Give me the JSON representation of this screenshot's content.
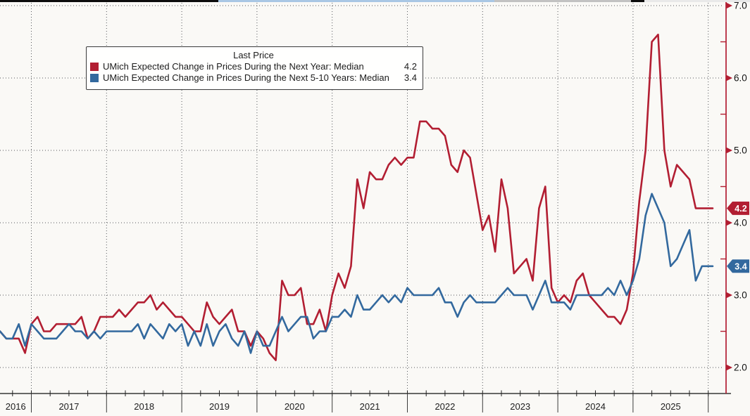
{
  "legend": {
    "title": "Last Price",
    "entries": [
      {
        "label": "UMich Expected Change in Prices During the Next Year: Median",
        "value": "4.2",
        "color": "#b21e32"
      },
      {
        "label": "UMich Expected Change in Prices During the Next 5-10 Years: Median",
        "value": "3.4",
        "color": "#33699e"
      }
    ]
  },
  "y_axis": {
    "tick_labels": [
      "7.0",
      "6.0",
      "5.0",
      "4.0",
      "3.0",
      "2.0"
    ],
    "axis_color": "#b21e32",
    "label_color": "#131313"
  },
  "x_axis": {
    "year_labels": [
      "2016",
      "2017",
      "2018",
      "2019",
      "2020",
      "2021",
      "2022",
      "2023",
      "2024",
      "2025"
    ]
  },
  "badges": [
    {
      "value": "4.2",
      "color": "#b21e32"
    },
    {
      "value": "3.4",
      "color": "#33699e"
    }
  ],
  "chart_data": {
    "type": "line",
    "title": "Last Price",
    "x_unit": "month",
    "x_start": "2016-08",
    "x_end": "2025-11",
    "ylim": [
      1.7,
      7.05
    ],
    "y_ticks": [
      2.0,
      3.0,
      4.0,
      5.0,
      6.0,
      7.0
    ],
    "grid": "dotted",
    "legend_position": "top-left-box",
    "series": [
      {
        "name": "UMich Expected Change in Prices During the Next Year: Median",
        "color": "#b21e32",
        "last": 4.2,
        "values": [
          2.5,
          2.4,
          2.4,
          2.4,
          2.2,
          2.6,
          2.7,
          2.5,
          2.5,
          2.6,
          2.6,
          2.6,
          2.6,
          2.7,
          2.4,
          2.5,
          2.7,
          2.7,
          2.7,
          2.8,
          2.7,
          2.8,
          2.9,
          2.9,
          3.0,
          2.8,
          2.9,
          2.8,
          2.7,
          2.7,
          2.6,
          2.5,
          2.5,
          2.9,
          2.7,
          2.6,
          2.7,
          2.8,
          2.5,
          2.5,
          2.3,
          2.5,
          2.4,
          2.2,
          2.1,
          3.2,
          3.0,
          3.0,
          3.1,
          2.6,
          2.6,
          2.8,
          2.5,
          3.0,
          3.3,
          3.1,
          3.4,
          4.6,
          4.2,
          4.7,
          4.6,
          4.6,
          4.8,
          4.9,
          4.8,
          4.9,
          4.9,
          5.4,
          5.4,
          5.3,
          5.3,
          5.2,
          4.8,
          4.7,
          5.0,
          4.9,
          4.4,
          3.9,
          4.1,
          3.6,
          4.6,
          4.2,
          3.3,
          3.4,
          3.5,
          3.2,
          4.2,
          4.5,
          3.1,
          2.9,
          3.0,
          2.9,
          3.2,
          3.3,
          3.0,
          2.9,
          2.8,
          2.7,
          2.7,
          2.6,
          2.8,
          3.3,
          4.3,
          5.0,
          6.5,
          6.6,
          5.0,
          4.5,
          4.8,
          4.7,
          4.6,
          4.2,
          4.2
        ]
      },
      {
        "name": "UMich Expected Change in Prices During the Next 5-10 Years: Median",
        "color": "#33699e",
        "last": 3.4,
        "values": [
          2.5,
          2.4,
          2.4,
          2.6,
          2.3,
          2.6,
          2.5,
          2.4,
          2.4,
          2.4,
          2.5,
          2.6,
          2.5,
          2.5,
          2.4,
          2.5,
          2.4,
          2.5,
          2.5,
          2.5,
          2.5,
          2.5,
          2.6,
          2.4,
          2.6,
          2.5,
          2.4,
          2.6,
          2.5,
          2.6,
          2.3,
          2.5,
          2.3,
          2.6,
          2.3,
          2.5,
          2.6,
          2.4,
          2.3,
          2.5,
          2.2,
          2.5,
          2.3,
          2.3,
          2.5,
          2.7,
          2.5,
          2.6,
          2.7,
          2.7,
          2.4,
          2.5,
          2.5,
          2.7,
          2.7,
          2.8,
          2.7,
          3.0,
          2.8,
          2.8,
          2.9,
          3.0,
          2.9,
          3.0,
          2.9,
          3.1,
          3.0,
          3.0,
          3.0,
          3.0,
          3.1,
          2.9,
          2.9,
          2.7,
          2.9,
          3.0,
          2.9,
          2.9,
          2.9,
          2.9,
          3.0,
          3.1,
          3.0,
          3.0,
          3.0,
          2.8,
          3.0,
          3.2,
          2.9,
          2.9,
          2.9,
          2.8,
          3.0,
          3.0,
          3.0,
          3.0,
          3.0,
          3.1,
          3.0,
          3.2,
          3.0,
          3.2,
          3.5,
          4.1,
          4.4,
          4.2,
          4.0,
          3.4,
          3.5,
          3.7,
          3.9,
          3.2,
          3.4
        ]
      }
    ]
  }
}
